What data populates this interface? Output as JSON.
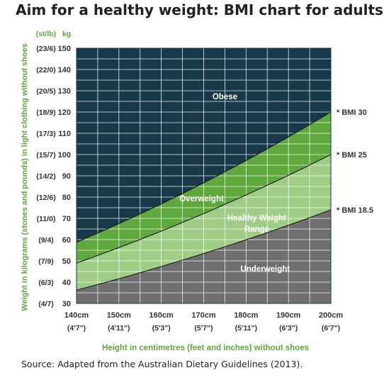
{
  "title": "Aim for a healthy weight: BMI chart for adults",
  "source": "Source: Adapted from the Australian Dietary Guidelines (2013).",
  "colors": {
    "obese": "#17394a",
    "overweight": "#5fa83d",
    "healthy": "#9fcd86",
    "underweight": "#6f6f6f",
    "grid": "#ffffff",
    "label_green": "#5fa83d",
    "label_dark": "#333333"
  },
  "chart_data": {
    "type": "area",
    "xlabel": "Height in centimetres (feet and inches) without shoes",
    "ylabel": "Weight in kilograms (stones and pounds) in light clothing without shoes",
    "y_unit_stone": "(st/lb)",
    "y_unit_kg": "kg",
    "xlim": [
      140,
      200
    ],
    "ylim": [
      30,
      150
    ],
    "grid": true,
    "x_ticks": [
      {
        "value": 140,
        "label": "140cm",
        "imperial": "(4'7\")"
      },
      {
        "value": 150,
        "label": "150cm",
        "imperial": "(4'11\")"
      },
      {
        "value": 160,
        "label": "160cm",
        "imperial": "(5'3\")"
      },
      {
        "value": 170,
        "label": "170cm",
        "imperial": "(5'7\")"
      },
      {
        "value": 180,
        "label": "180cm",
        "imperial": "(5'11\")"
      },
      {
        "value": 190,
        "label": "190cm",
        "imperial": "(6'3\")"
      },
      {
        "value": 200,
        "label": "200cm",
        "imperial": "(6'7\")"
      }
    ],
    "y_ticks": [
      {
        "value": 30,
        "label": "30",
        "stone": "(4/7)"
      },
      {
        "value": 40,
        "label": "40",
        "stone": "(6/3)"
      },
      {
        "value": 50,
        "label": "50",
        "stone": "(7/9)"
      },
      {
        "value": 60,
        "label": "60",
        "stone": "(9/4)"
      },
      {
        "value": 70,
        "label": "70",
        "stone": "(11/0)"
      },
      {
        "value": 80,
        "label": "80",
        "stone": "(12/6)"
      },
      {
        "value": 90,
        "label": "90",
        "stone": "(14/2)"
      },
      {
        "value": 100,
        "label": "100",
        "stone": "(15/7)"
      },
      {
        "value": 110,
        "label": "110",
        "stone": "(17/3)"
      },
      {
        "value": 120,
        "label": "120",
        "stone": "(18/9)"
      },
      {
        "value": 130,
        "label": "130",
        "stone": "(20/5)"
      },
      {
        "value": 140,
        "label": "140",
        "stone": "(22/0)"
      },
      {
        "value": 150,
        "label": "150",
        "stone": "(23/6)"
      }
    ],
    "boundaries": [
      {
        "name": "* BMI 18.5",
        "bmi": 18.5
      },
      {
        "name": "* BMI 25",
        "bmi": 25
      },
      {
        "name": "* BMI 30",
        "bmi": 30
      }
    ],
    "regions": [
      {
        "label": "Obese",
        "label_lines": [
          "Obese"
        ],
        "anchor": {
          "x": 175,
          "y": 126
        }
      },
      {
        "label": "Overweight",
        "label_lines": [
          "Overweight"
        ],
        "anchor": {
          "x": 169.5,
          "y": 78
        }
      },
      {
        "label": "Healthy Weight Range",
        "label_lines": [
          "Healthy Weight",
          "Range"
        ],
        "anchor": {
          "x": 182.5,
          "y": 69
        }
      },
      {
        "label": "Underweight",
        "label_lines": [
          "Underweight"
        ],
        "anchor": {
          "x": 184.5,
          "y": 45
        }
      }
    ]
  }
}
